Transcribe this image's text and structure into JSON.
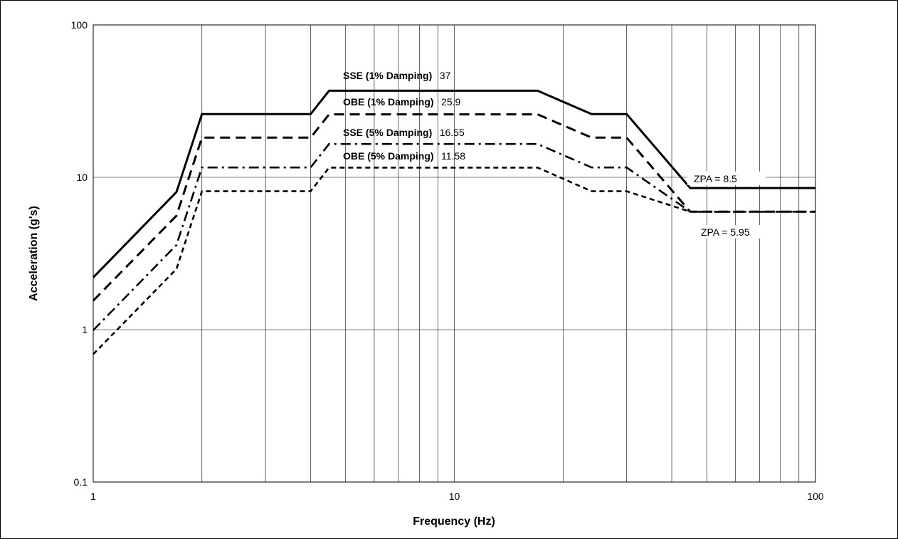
{
  "chart_data": {
    "type": "line",
    "xlabel": "Frequency (Hz)",
    "ylabel": "Acceleration (g's)",
    "xscale": "log",
    "yscale": "log",
    "xlim": [
      1,
      100
    ],
    "ylim": [
      0.1,
      100
    ],
    "x_ticks": [
      "1",
      "10",
      "100"
    ],
    "y_ticks": [
      "0.1",
      "1",
      "10",
      "100"
    ],
    "grid": true,
    "legend": "none",
    "series": [
      {
        "points": [
          [
            1,
            2.2
          ],
          [
            1.7,
            8
          ],
          [
            2,
            26
          ],
          [
            4,
            26
          ],
          [
            4.5,
            37
          ],
          [
            17,
            37
          ],
          [
            24,
            26
          ],
          [
            30,
            26
          ],
          [
            45,
            8.5
          ],
          [
            100,
            8.5
          ]
        ],
        "style": "solid"
      },
      {
        "points": [
          [
            1,
            1.55
          ],
          [
            1.7,
            5.6
          ],
          [
            2,
            18.2
          ],
          [
            4,
            18.2
          ],
          [
            4.5,
            25.9
          ],
          [
            17,
            25.9
          ],
          [
            24,
            18.2
          ],
          [
            30,
            18.2
          ],
          [
            45,
            5.95
          ],
          [
            100,
            5.95
          ]
        ],
        "style": "dashed"
      },
      {
        "points": [
          [
            1,
            0.99
          ],
          [
            1.7,
            3.6
          ],
          [
            2,
            11.6
          ],
          [
            4,
            11.6
          ],
          [
            4.5,
            16.55
          ],
          [
            17,
            16.55
          ],
          [
            24,
            11.6
          ],
          [
            30,
            11.6
          ],
          [
            45,
            5.95
          ],
          [
            100,
            5.95
          ]
        ],
        "style": "dashdot"
      },
      {
        "points": [
          [
            1,
            0.69
          ],
          [
            1.7,
            2.5
          ],
          [
            2,
            8.1
          ],
          [
            4,
            8.1
          ],
          [
            4.5,
            11.58
          ],
          [
            17,
            11.58
          ],
          [
            24,
            8.1
          ],
          [
            30,
            8.1
          ],
          [
            45,
            5.95
          ],
          [
            100,
            5.95
          ]
        ],
        "style": "short-dashed"
      }
    ],
    "annotations": [
      {
        "bold": "SSE (1% Damping)",
        "value": "37"
      },
      {
        "bold": "OBE (1% Damping)",
        "value": "25.9"
      },
      {
        "bold": "SSE (5% Damping)",
        "value": "16.55"
      },
      {
        "bold": "OBE (5% Damping)",
        "value": "11.58"
      },
      {
        "text": "ZPA = 8.5"
      },
      {
        "text": "ZPA = 5.95"
      }
    ]
  }
}
